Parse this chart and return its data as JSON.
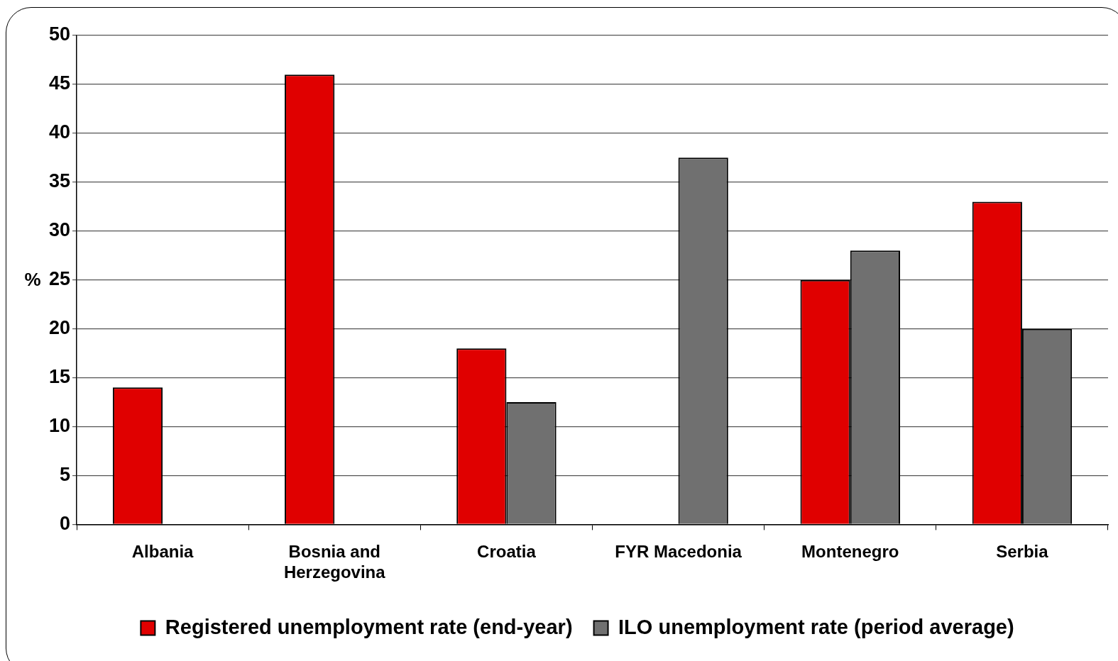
{
  "chart_data": {
    "type": "bar",
    "ylabel": "%",
    "categories": [
      "Albania",
      "Bosnia and Herzegovina",
      "Croatia",
      "FYR Macedonia",
      "Montenegro",
      "Serbia"
    ],
    "series": [
      {
        "name": "Registered unemployment rate (end-year)",
        "color": "#e00000",
        "values": [
          14,
          46,
          18,
          null,
          25,
          33
        ]
      },
      {
        "name": "ILO unemployment rate (period average)",
        "color": "#707070",
        "values": [
          null,
          null,
          12.5,
          37.5,
          28,
          20
        ]
      }
    ],
    "ylim": [
      0,
      50
    ],
    "yticks": [
      0,
      5,
      10,
      15,
      20,
      25,
      30,
      35,
      40,
      45,
      50
    ],
    "grid": "y",
    "legend": "bottom"
  }
}
